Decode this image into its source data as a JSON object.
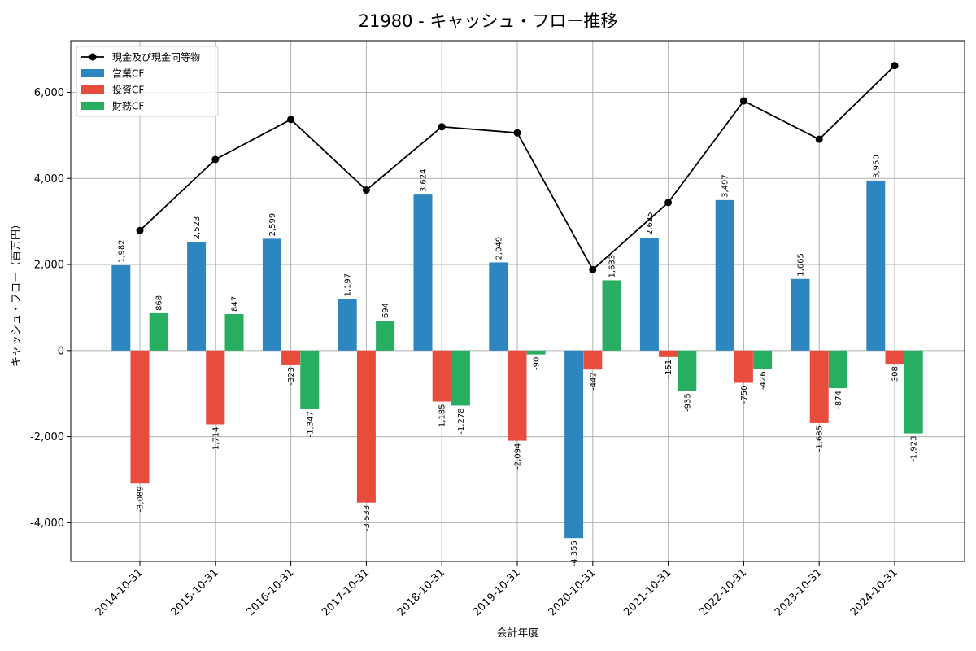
{
  "chart_data": {
    "type": "bar",
    "title": "21980 - キャッシュ・フロー推移",
    "xlabel": "会計年度",
    "ylabel": "キャッシュ・フロー（百万円）",
    "categories": [
      "2014-10-31",
      "2015-10-31",
      "2016-10-31",
      "2017-10-31",
      "2018-10-31",
      "2019-10-31",
      "2020-10-31",
      "2021-10-31",
      "2022-10-31",
      "2023-10-31",
      "2024-10-31"
    ],
    "ylim": [
      -4900,
      7200
    ],
    "yticks": [
      -4000,
      -2000,
      0,
      2000,
      4000,
      6000
    ],
    "ytick_labels": [
      "-4,000",
      "-2,000",
      "0",
      "2,000",
      "4,000",
      "6,000"
    ],
    "grid": true,
    "legend_position": "top-left",
    "series": [
      {
        "name": "営業CF",
        "kind": "bar",
        "color": "#2e86c1",
        "values": [
          1982,
          2523,
          2599,
          1197,
          3624,
          2049,
          -4355,
          2625,
          3497,
          1665,
          3950
        ],
        "labels": [
          "1,982",
          "2,523",
          "2,599",
          "1,197",
          "3,624",
          "2,049",
          "-4,355",
          "2,625",
          "3,497",
          "1,665",
          "3,950"
        ]
      },
      {
        "name": "投資CF",
        "kind": "bar",
        "color": "#e74c3c",
        "values": [
          -3089,
          -1714,
          -323,
          -3533,
          -1185,
          -2094,
          -442,
          -151,
          -750,
          -1685,
          -308
        ],
        "labels": [
          "-3,089",
          "-1,714",
          "-323",
          "-3,533",
          "-1,185",
          "-2,094",
          "-442",
          "-151",
          "-750",
          "-1,685",
          "-308"
        ]
      },
      {
        "name": "財務CF",
        "kind": "bar",
        "color": "#27ae60",
        "values": [
          868,
          847,
          -1347,
          694,
          -1278,
          -90,
          1633,
          -935,
          -426,
          -874,
          -1923
        ],
        "labels": [
          "868",
          "847",
          "-1,347",
          "694",
          "-1,278",
          "-90",
          "1,633",
          "-935",
          "-426",
          "-874",
          "-1,923"
        ]
      },
      {
        "name": "現金及び現金同等物",
        "kind": "line",
        "color": "#000000",
        "values": [
          2790,
          4440,
          5370,
          3730,
          5200,
          5060,
          1880,
          3440,
          5800,
          4910,
          6620
        ]
      }
    ]
  }
}
